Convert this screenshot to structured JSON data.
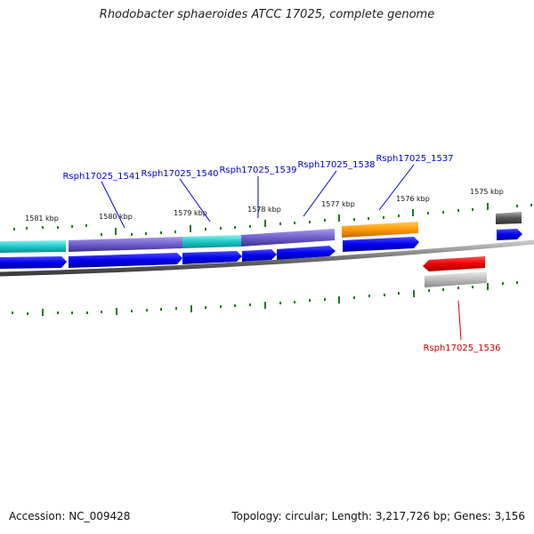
{
  "title": "Rhodobacter sphaeroides ATCC 17025, complete genome",
  "footer": {
    "accession": "Accession: NC_009428",
    "summary": "Topology: circular; Length: 3,217,726 bp; Genes: 3,156"
  },
  "ticks": {
    "upper_labels": [
      "1581 kbp",
      "1580 kbp",
      "1579 kbp",
      "1578 kbp",
      "1577 kbp",
      "1576 kbp",
      "1575 kbp"
    ]
  },
  "genes": [
    {
      "name": "Rsph17025_1541",
      "color": "#0000cc"
    },
    {
      "name": "Rsph17025_1540",
      "color": "#0000cc"
    },
    {
      "name": "Rsph17025_1539",
      "color": "#0000cc"
    },
    {
      "name": "Rsph17025_1538",
      "color": "#0000cc"
    },
    {
      "name": "Rsph17025_1537",
      "color": "#0000cc"
    },
    {
      "name": "Rsph17025_1536",
      "color": "#cc0000"
    }
  ],
  "colors": {
    "forward_cds": "#0000ee",
    "reverse_cds": "#ee0000",
    "tick": "#1a7a1a",
    "backbone": "#777777",
    "cyan_feature": "#1ec8c8",
    "purple_feature": "#7060cc",
    "orange_feature": "#ff9900",
    "grey_feature": "#999999"
  }
}
